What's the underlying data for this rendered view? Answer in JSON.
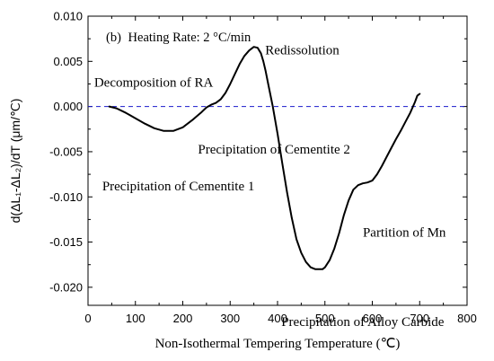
{
  "chart_data": {
    "type": "line",
    "panel_label": "(b)",
    "title": "Heating Rate: 2 °C/min",
    "xlabel": "Non-Isothermal Tempering Temperature (℃)",
    "ylabel": "d(ΔL₁-ΔL₂)/dT (μm/℃)",
    "xlim": [
      0,
      800
    ],
    "ylim": [
      -0.022,
      0.01
    ],
    "x_ticks": [
      0,
      100,
      200,
      300,
      400,
      500,
      600,
      700,
      800
    ],
    "y_ticks": [
      -0.02,
      -0.015,
      -0.01,
      -0.005,
      0.0,
      0.005,
      0.01
    ],
    "x_tick_labels": [
      "0",
      "100",
      "200",
      "300",
      "400",
      "500",
      "600",
      "700",
      "800"
    ],
    "y_tick_labels": [
      "-0.020",
      "-0.015",
      "-0.010",
      "-0.005",
      "0.000",
      "0.005",
      "0.010"
    ],
    "reference_line": {
      "y": 0.0,
      "style": "dashed",
      "color": "#1a1acc"
    },
    "series": [
      {
        "color": "#000000",
        "x": [
          45,
          60,
          80,
          100,
          120,
          140,
          160,
          180,
          200,
          220,
          240,
          250,
          260,
          270,
          280,
          290,
          300,
          310,
          320,
          330,
          340,
          350,
          358,
          365,
          370,
          375,
          380,
          390,
          400,
          410,
          420,
          430,
          440,
          450,
          460,
          470,
          480,
          490,
          495,
          500,
          510,
          520,
          530,
          540,
          550,
          560,
          570,
          580,
          590,
          600,
          610,
          620,
          630,
          640,
          650,
          660,
          670,
          680,
          690,
          695,
          700
        ],
        "y": [
          0.0,
          -0.0002,
          -0.0007,
          -0.0013,
          -0.0019,
          -0.0024,
          -0.0027,
          -0.0027,
          -0.0023,
          -0.0015,
          -0.0006,
          -0.0001,
          0.0002,
          0.0004,
          0.0008,
          0.0015,
          0.0025,
          0.0036,
          0.0047,
          0.0056,
          0.0062,
          0.0066,
          0.0065,
          0.0059,
          0.005,
          0.0039,
          0.0026,
          0.0,
          -0.003,
          -0.0063,
          -0.0095,
          -0.0123,
          -0.0147,
          -0.0162,
          -0.0172,
          -0.0178,
          -0.018,
          -0.018,
          -0.018,
          -0.0178,
          -0.017,
          -0.0157,
          -0.014,
          -0.012,
          -0.0104,
          -0.0092,
          -0.0087,
          -0.0085,
          -0.0084,
          -0.0082,
          -0.0075,
          -0.0066,
          -0.0056,
          -0.0046,
          -0.0036,
          -0.0027,
          -0.0017,
          -0.0007,
          0.0005,
          0.0012,
          0.0014
        ]
      }
    ],
    "annotations": [
      {
        "id": "decomposition",
        "text": "Decomposition of RA",
        "x": 13,
        "y": 0.0022
      },
      {
        "id": "redissolution",
        "text": "Redissolution",
        "x": 374,
        "y": 0.0058
      },
      {
        "id": "cementite-2",
        "text": "Precipitation of Cementite 2",
        "x": 232,
        "y": -0.0052
      },
      {
        "id": "cementite-1",
        "text": "Precipitation of Cementite 1",
        "x": 30,
        "y": -0.0093
      },
      {
        "id": "partition-mn",
        "text": "Partition of Mn",
        "x": 580,
        "y": -0.0144
      },
      {
        "id": "alloy-carbide",
        "text": "Precipitation of Alloy Carbide",
        "x": 408,
        "y": -0.0243
      }
    ],
    "grid": false,
    "legend": "none"
  }
}
